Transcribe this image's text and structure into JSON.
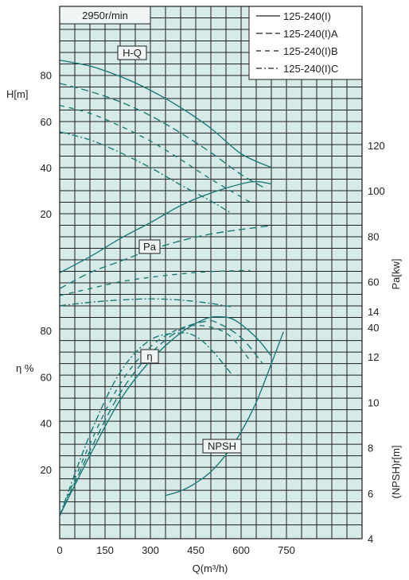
{
  "chart_data": {
    "type": "line",
    "speed_label": "2950r/min",
    "xlabel": "Q(m³/h)",
    "xlim": [
      0,
      750
    ],
    "x_ticks": [
      "0",
      "150",
      "300",
      "450",
      "600",
      "750"
    ],
    "colors": {
      "background": "#d6eae8",
      "curve": "#1f7a78",
      "grid": "#1f1f1f"
    },
    "legend": {
      "placement": "top-right",
      "entries": [
        {
          "name": "125-240(I)",
          "dash": "solid"
        },
        {
          "name": "125-240(I)A",
          "dash": "dashed"
        },
        {
          "name": "125-240(I)B",
          "dash": "dashed-short"
        },
        {
          "name": "125-240(I)C",
          "dash": "dash-dot"
        }
      ]
    },
    "panels": {
      "head": {
        "label": "H-Q",
        "ylabel": "H[m]",
        "y_ticks": [
          "20",
          "40",
          "60",
          "80"
        ],
        "ylim": [
          20,
          90
        ],
        "series": [
          {
            "x": [
              0,
              100,
              200,
              300,
              400,
              500,
              600,
              700
            ],
            "y": [
              86.5,
              84,
              79.5,
              73.5,
              66,
              57,
              46,
              40
            ]
          },
          {
            "x": [
              0,
              100,
              200,
              300,
              400,
              500,
              600,
              680
            ],
            "y": [
              76.5,
              73,
              68.5,
              62.5,
              55,
              46.5,
              37,
              31
            ]
          },
          {
            "x": [
              0,
              100,
              200,
              300,
              400,
              500,
              630
            ],
            "y": [
              67,
              63.5,
              58,
              51.5,
              43.5,
              35,
              25
            ]
          },
          {
            "x": [
              0,
              100,
              200,
              300,
              400,
              500,
              570
            ],
            "y": [
              55.5,
              52,
              46.5,
              40,
              32.5,
              25.5,
              20
            ]
          }
        ]
      },
      "power": {
        "label": "Pa",
        "ylabel": "Pa[kw]",
        "y_ticks": [
          "40",
          "60",
          "80",
          "100",
          "120"
        ],
        "ylim": [
          40,
          120
        ],
        "series": [
          {
            "x": [
              0,
              100,
              200,
              300,
              400,
              500,
              600,
              650,
              700
            ],
            "y": [
              64,
              71,
              79,
              86,
              93.5,
              99,
              103,
              104,
              103
            ]
          },
          {
            "x": [
              0,
              100,
              200,
              300,
              400,
              500,
              600,
              690
            ],
            "y": [
              57,
              64,
              69,
              74,
              78,
              81,
              83,
              84.5
            ]
          },
          {
            "x": [
              0,
              100,
              200,
              300,
              400,
              500,
              630
            ],
            "y": [
              54,
              57,
              60,
              62,
              63.5,
              64.5,
              65
            ]
          },
          {
            "x": [
              0,
              100,
              200,
              300,
              400,
              500,
              570
            ],
            "y": [
              49.5,
              51,
              52,
              52.5,
              52,
              50.5,
              49
            ]
          }
        ]
      },
      "efficiency": {
        "label": "η",
        "ylabel": "η %",
        "y_ticks": [
          "20",
          "40",
          "60",
          "80"
        ],
        "ylim": [
          0,
          92
        ],
        "series": [
          {
            "x": [
              0,
              100,
              200,
              300,
              400,
              480,
              530,
              580,
              650,
              700
            ],
            "y": [
              0,
              26,
              50,
              67,
              79,
              85,
              86,
              84.5,
              77,
              69
            ]
          },
          {
            "x": [
              0,
              100,
              200,
              300,
              400,
              480,
              520,
              600,
              670
            ],
            "y": [
              0,
              28,
              53,
              70,
              80.5,
              84,
              83.5,
              77,
              66
            ]
          },
          {
            "x": [
              0,
              100,
              200,
              300,
              400,
              480,
              560,
              630
            ],
            "y": [
              0,
              31,
              57,
              73,
              81,
              82,
              78,
              67
            ]
          },
          {
            "x": [
              0,
              100,
              200,
              300,
              400,
              450,
              500,
              570
            ],
            "y": [
              0,
              35,
              62,
              76,
              79,
              77.5,
              72,
              61
            ]
          }
        ]
      },
      "npsh": {
        "label": "NPSH",
        "ylabel": "(NPSH)r[m]",
        "y_ticks": [
          "4",
          "6",
          "8",
          "10",
          "12",
          "14"
        ],
        "ylim": [
          4,
          14
        ],
        "series": [
          {
            "x": [
              350,
              400,
              450,
              500,
              550,
              600,
              650,
              700,
              740
            ],
            "y": [
              5.9,
              6.1,
              6.45,
              6.95,
              7.7,
              8.7,
              10.0,
              11.7,
              13.1
            ]
          }
        ]
      }
    }
  }
}
